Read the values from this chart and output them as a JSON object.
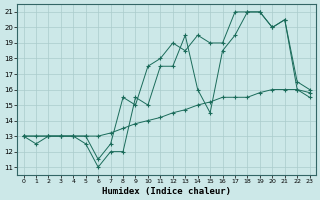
{
  "xlabel": "Humidex (Indice chaleur)",
  "xlim": [
    -0.5,
    23.5
  ],
  "ylim": [
    10.5,
    21.5
  ],
  "xticks": [
    0,
    1,
    2,
    3,
    4,
    5,
    6,
    7,
    8,
    9,
    10,
    11,
    12,
    13,
    14,
    15,
    16,
    17,
    18,
    19,
    20,
    21,
    22,
    23
  ],
  "yticks": [
    11,
    12,
    13,
    14,
    15,
    16,
    17,
    18,
    19,
    20,
    21
  ],
  "bg_color": "#cce8e8",
  "grid_color": "#aacccc",
  "line_color": "#1a6b5a",
  "line1_x": [
    0,
    1,
    2,
    3,
    4,
    5,
    6,
    7,
    8,
    9,
    10,
    11,
    12,
    13,
    14,
    15,
    16,
    17,
    18,
    19,
    20,
    21,
    22,
    23
  ],
  "line1_y": [
    13.0,
    12.5,
    13.0,
    13.0,
    13.0,
    12.5,
    11.0,
    12.0,
    12.0,
    15.5,
    15.0,
    17.5,
    17.5,
    19.5,
    16.0,
    14.5,
    18.5,
    19.5,
    21.0,
    21.0,
    20.0,
    20.5,
    16.5,
    16.0
  ],
  "line2_x": [
    0,
    2,
    3,
    4,
    5,
    6,
    7,
    8,
    9,
    10,
    11,
    12,
    13,
    14,
    15,
    16,
    17,
    18,
    19,
    20,
    21,
    22,
    23
  ],
  "line2_y": [
    13.0,
    13.0,
    13.0,
    13.0,
    13.0,
    11.5,
    12.5,
    15.5,
    15.0,
    17.5,
    18.0,
    19.0,
    18.5,
    19.5,
    19.0,
    19.0,
    21.0,
    21.0,
    21.0,
    20.0,
    20.5,
    16.0,
    15.5
  ],
  "line3_x": [
    0,
    1,
    2,
    3,
    4,
    5,
    6,
    7,
    8,
    9,
    10,
    11,
    12,
    13,
    14,
    15,
    16,
    17,
    18,
    19,
    20,
    21,
    22,
    23
  ],
  "line3_y": [
    13.0,
    13.0,
    13.0,
    13.0,
    13.0,
    13.0,
    13.0,
    13.2,
    13.5,
    13.8,
    14.0,
    14.2,
    14.5,
    14.7,
    15.0,
    15.2,
    15.5,
    15.5,
    15.5,
    15.8,
    16.0,
    16.0,
    16.0,
    15.8
  ]
}
